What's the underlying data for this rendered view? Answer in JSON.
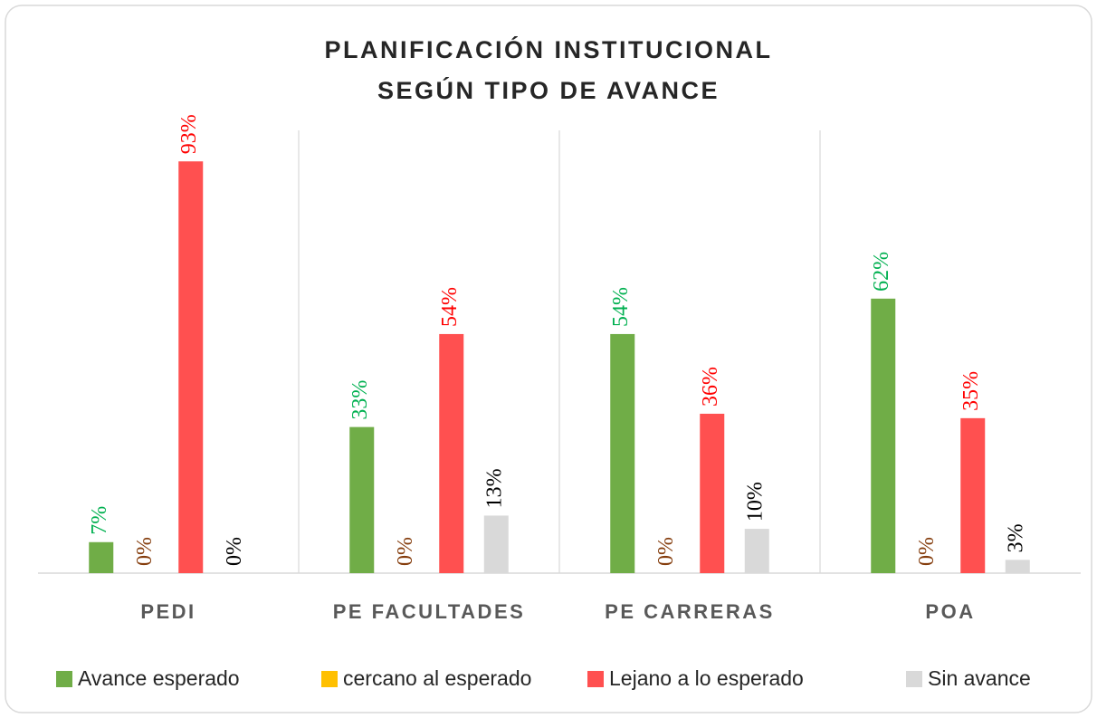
{
  "chart_data": {
    "type": "bar",
    "title": [
      "PLANIFICACIÓN INSTITUCIONAL",
      "SEGÚN TIPO DE AVANCE"
    ],
    "categories": [
      "PEDI",
      "PE FACULTADES",
      "PE CARRERAS",
      "POA"
    ],
    "series": [
      {
        "name": "Avance esperado",
        "color": "#70ad47",
        "label_color": "#00b050",
        "values": [
          7,
          33,
          54,
          62
        ],
        "value_labels": [
          "7%",
          "33%",
          "54%",
          "62%"
        ]
      },
      {
        "name": "cercano al esperado",
        "color": "#ffc000",
        "label_color": "#843c0c",
        "values": [
          0,
          0,
          0,
          0
        ],
        "value_labels": [
          "0%",
          "0%",
          "0%",
          "0%"
        ]
      },
      {
        "name": "Lejano a lo esperado",
        "color": "#ff5050",
        "label_color": "#ff0000",
        "values": [
          93,
          54,
          36,
          35
        ],
        "value_labels": [
          "93%",
          "54%",
          "36%",
          "35%"
        ]
      },
      {
        "name": "Sin avance",
        "color": "#d9d9d9",
        "label_color": "#000000",
        "values": [
          0,
          13,
          10,
          3
        ],
        "value_labels": [
          "0%",
          "13%",
          "10%",
          "3%"
        ]
      }
    ],
    "ylim": [
      0,
      100
    ],
    "legend": "bottom"
  }
}
